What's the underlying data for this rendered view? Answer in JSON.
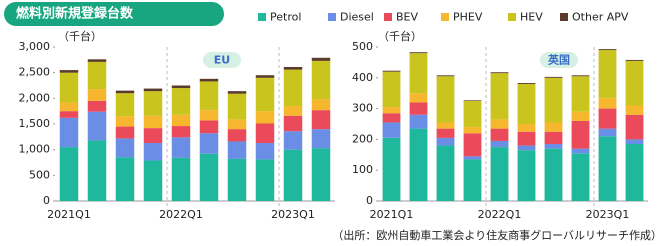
{
  "title": "燃料別新規登録台数",
  "source": "（出所：欧州自動車工業会より住友商事グローバルリサーチ作成）",
  "chart_data": [
    {
      "type": "stacked_bar",
      "panel_label": "EU",
      "y_label": "（千台）",
      "categories": [
        "2021Q1",
        null,
        null,
        null,
        "2022Q1",
        null,
        null,
        null,
        "2023Q1",
        null
      ],
      "ylim": [
        0,
        3000
      ],
      "yticks": [
        0,
        500,
        {
          "value": 1000,
          "label": "1,000"
        },
        {
          "value": 1500,
          "label": "1,500"
        },
        {
          "value": 2000,
          "label": "2,000"
        },
        {
          "value": 2500,
          "label": "2,500"
        },
        {
          "value": 3000,
          "label": "3,000"
        }
      ],
      "series": [
        {
          "name": "Petrol",
          "color": "#1fb89c",
          "values": [
            1050,
            1180,
            850,
            790,
            840,
            920,
            820,
            810,
            1000,
            1030
          ]
        },
        {
          "name": "Diesel",
          "color": "#6a8ee6",
          "values": [
            570,
            560,
            370,
            340,
            400,
            400,
            340,
            320,
            360,
            370
          ]
        },
        {
          "name": "BEV",
          "color": "#ea4a5a",
          "values": [
            130,
            210,
            230,
            290,
            220,
            250,
            240,
            380,
            300,
            370
          ]
        },
        {
          "name": "PHEV",
          "color": "#f6b62e",
          "values": [
            170,
            230,
            200,
            240,
            220,
            200,
            190,
            240,
            190,
            210
          ]
        },
        {
          "name": "HEV",
          "color": "#c9c41e",
          "values": [
            580,
            530,
            450,
            480,
            520,
            560,
            500,
            650,
            710,
            750
          ]
        },
        {
          "name": "Other APV",
          "color": "#5a3a2a",
          "values": [
            50,
            50,
            50,
            50,
            50,
            50,
            50,
            50,
            50,
            60
          ]
        }
      ]
    },
    {
      "type": "stacked_bar",
      "panel_label": "英国",
      "y_label": "（千台）",
      "categories": [
        "2021Q1",
        null,
        null,
        null,
        "2022Q1",
        null,
        null,
        null,
        "2023Q1",
        null
      ],
      "ylim": [
        0,
        500
      ],
      "yticks": [
        0,
        100,
        200,
        300,
        400,
        500
      ],
      "series": [
        {
          "color": "#1fb89c",
          "values": [
            205,
            235,
            180,
            135,
            175,
            165,
            170,
            155,
            210,
            185
          ]
        },
        {
          "color": "#6a8ee6",
          "values": [
            50,
            45,
            25,
            10,
            20,
            15,
            15,
            15,
            25,
            15
          ]
        },
        {
          "color": "#ea4a5a",
          "values": [
            30,
            40,
            30,
            75,
            40,
            45,
            40,
            90,
            65,
            80
          ]
        },
        {
          "color": "#f6b62e",
          "values": [
            20,
            30,
            20,
            20,
            30,
            25,
            30,
            30,
            35,
            30
          ]
        },
        {
          "color": "#c9c41e",
          "values": [
            115,
            130,
            150,
            85,
            150,
            130,
            145,
            115,
            155,
            145
          ]
        },
        {
          "color": "#5a3a2a",
          "values": [
            3,
            3,
            3,
            2,
            3,
            3,
            3,
            3,
            3,
            3
          ]
        }
      ]
    }
  ]
}
